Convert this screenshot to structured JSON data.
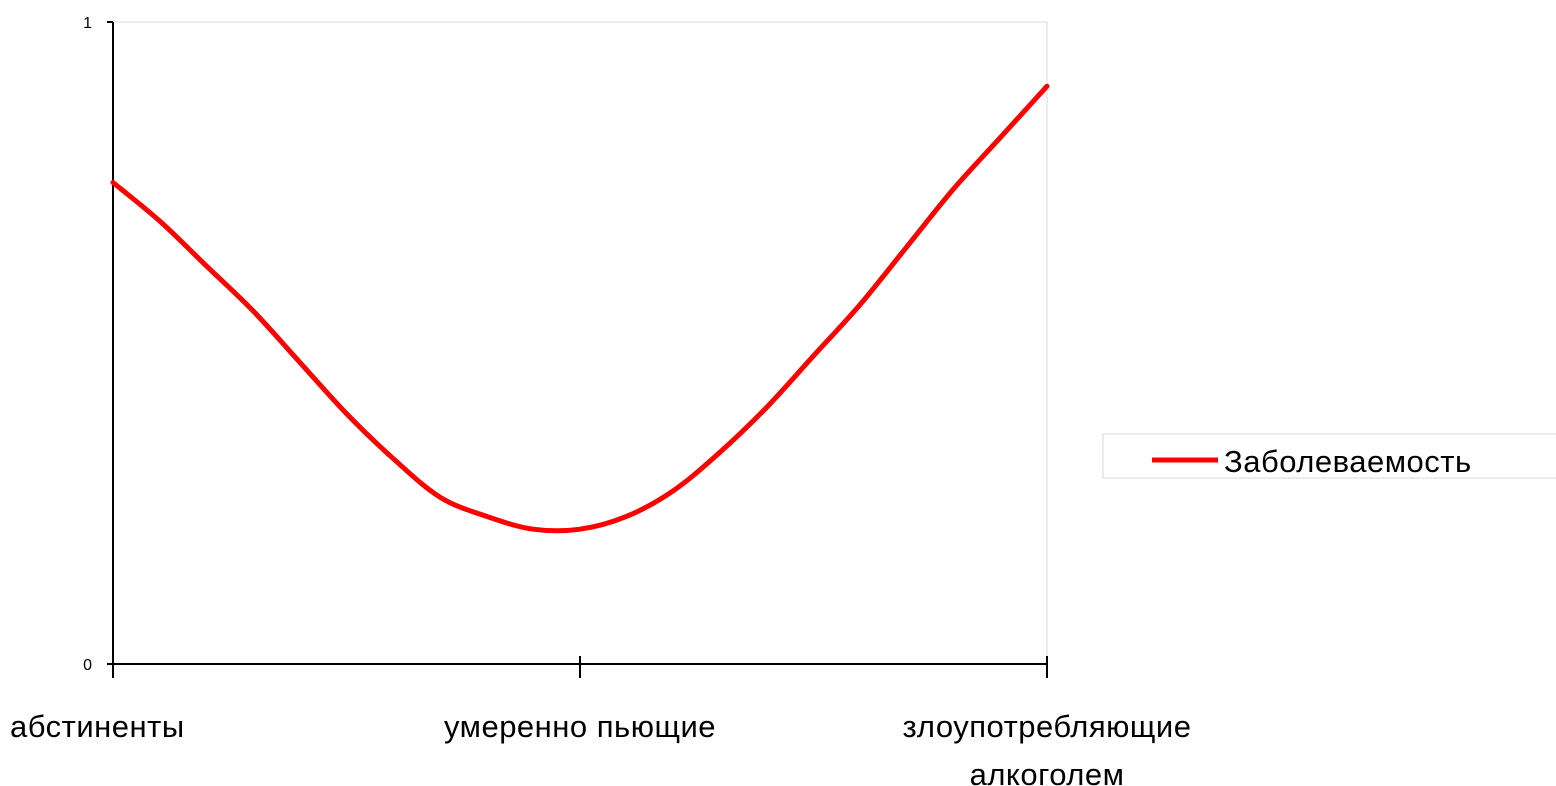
{
  "chart_data": {
    "type": "line",
    "categories": [
      "абстиненты",
      "умеренно пьющие",
      "злоупотребляющие алкоголем"
    ],
    "x": [
      0,
      0.05,
      0.1,
      0.15,
      0.2,
      0.25,
      0.3,
      0.35,
      0.4,
      0.45,
      0.5,
      0.55,
      0.6,
      0.65,
      0.7,
      0.75,
      0.8,
      0.85,
      0.9,
      0.95,
      1.0
    ],
    "series": [
      {
        "name": "Заболеваемость",
        "color": "#ff0000",
        "values": [
          0.75,
          0.69,
          0.62,
          0.55,
          0.47,
          0.39,
          0.32,
          0.26,
          0.23,
          0.21,
          0.21,
          0.23,
          0.27,
          0.33,
          0.4,
          0.48,
          0.56,
          0.65,
          0.74,
          0.82,
          0.9
        ]
      }
    ],
    "yticks": [
      "0",
      "1"
    ],
    "ylim": [
      0,
      1
    ],
    "grid": false,
    "legend_position": "right"
  }
}
